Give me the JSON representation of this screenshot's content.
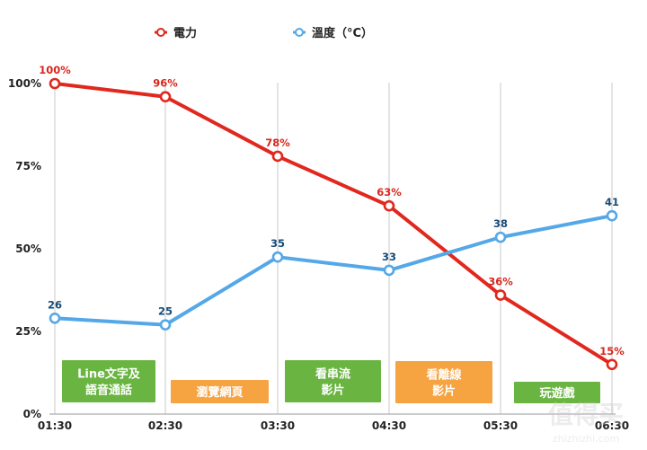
{
  "chart_data": {
    "type": "line",
    "categories": [
      "01:30",
      "02:30",
      "03:30",
      "04:30",
      "05:30",
      "06:30"
    ],
    "y_ticks": [
      "0%",
      "25%",
      "50%",
      "75%",
      "100%"
    ],
    "ylim": [
      0,
      100
    ],
    "grid": "vertical",
    "legend_position": "top",
    "series": [
      {
        "name": "電力",
        "color": "#e0281e",
        "values": [
          100,
          96,
          78,
          63,
          36,
          15
        ],
        "labels": [
          "100%",
          "96%",
          "78%",
          "63%",
          "36%",
          "15%"
        ]
      },
      {
        "name": "溫度（°C）",
        "color": "#55a8e8",
        "values": [
          29,
          27,
          47.5,
          43.5,
          53.5,
          60
        ],
        "labels": [
          "26",
          "25",
          "35",
          "33",
          "38",
          "41"
        ]
      }
    ],
    "activities": [
      {
        "lines": [
          "Line文字及",
          "語音通話"
        ],
        "color": "#6ab442"
      },
      {
        "lines": [
          "瀏覽網頁"
        ],
        "color": "#f6a341"
      },
      {
        "lines": [
          "看串流",
          "影片"
        ],
        "color": "#6ab442"
      },
      {
        "lines": [
          "看離線",
          "影片"
        ],
        "color": "#f6a341"
      },
      {
        "lines": [
          "玩遊戲"
        ],
        "color": "#6ab442"
      }
    ]
  },
  "watermark": {
    "main": "值得买",
    "sub": "zhizhizhi.com"
  }
}
